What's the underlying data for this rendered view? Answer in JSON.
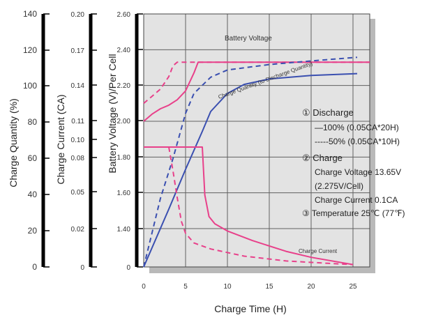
{
  "chart_data": {
    "type": "line",
    "title": "",
    "xlabel": "Charge Time (H)",
    "xlim": [
      0,
      27
    ],
    "xticks": [
      "0",
      "5",
      "10",
      "15",
      "20",
      "25"
    ],
    "grid": true,
    "axes": {
      "quantity": {
        "label": "Charge Quantity (%)",
        "ticks": [
          "0",
          "20",
          "40",
          "60",
          "80",
          "100",
          "120",
          "140"
        ],
        "ylim": [
          0,
          140
        ]
      },
      "current": {
        "label": "Charge Current (CA)",
        "ticks": [
          "0",
          "0.02",
          "0.05",
          "0.08",
          "0.10",
          "0.11",
          "0.14",
          "0.17",
          "0.20"
        ]
      },
      "voltage": {
        "label": "Battery Voltage (V)/Per Cell",
        "ticks": [
          "0",
          "1.40",
          "1.60",
          "1.80",
          "2.00",
          "2.20",
          "2.40",
          "2.60"
        ]
      }
    },
    "curve_labels": {
      "voltage": "Battery Voltage",
      "quantity": "Charge Quantity (to-Discharge Quantity)",
      "current": "Charge Current"
    },
    "series": [
      {
        "key": "voltage_100",
        "color": "#e8408a",
        "dash": false,
        "x": [
          0,
          1,
          2,
          3,
          4,
          5,
          6,
          6.5,
          27
        ],
        "y": [
          2.0,
          2.04,
          2.07,
          2.09,
          2.12,
          2.17,
          2.27,
          2.33,
          2.33
        ]
      },
      {
        "key": "voltage_50",
        "color": "#e8408a",
        "dash": true,
        "x": [
          0,
          1,
          2,
          3,
          3.5,
          4,
          27
        ],
        "y": [
          2.1,
          2.14,
          2.18,
          2.25,
          2.31,
          2.33,
          2.33
        ]
      },
      {
        "key": "quantity_100",
        "color": "#3a4fb0",
        "dash": false,
        "x": [
          0,
          3,
          5,
          7,
          8,
          10,
          12,
          15,
          20,
          25.5
        ],
        "y": [
          0,
          32,
          54,
          75,
          86,
          96,
          101,
          104,
          106,
          107
        ]
      },
      {
        "key": "quantity_50",
        "color": "#3a4fb0",
        "dash": true,
        "x": [
          0,
          2,
          3.5,
          5,
          6,
          8,
          10,
          15,
          20,
          25.5
        ],
        "y": [
          0,
          38,
          60,
          85,
          96,
          105,
          109,
          112,
          114,
          116
        ]
      },
      {
        "key": "current_100",
        "color": "#e8408a",
        "dash": false,
        "x": [
          0,
          7,
          7.3,
          7.8,
          8.5,
          10,
          13,
          17,
          20,
          25
        ],
        "y": [
          0.1,
          0.1,
          0.06,
          0.042,
          0.036,
          0.03,
          0.022,
          0.013,
          0.008,
          0.002
        ]
      },
      {
        "key": "current_50",
        "color": "#e8408a",
        "dash": true,
        "x": [
          0,
          3,
          3.5,
          4,
          4.5,
          5,
          6,
          8,
          12,
          17,
          22,
          25
        ],
        "y": [
          0.1,
          0.1,
          0.08,
          0.058,
          0.038,
          0.028,
          0.02,
          0.015,
          0.009,
          0.005,
          0.003,
          0.002
        ]
      }
    ]
  },
  "legend": {
    "discharge_title": "① Discharge",
    "d100": "—100% (0.05CA*20H)",
    "d50": "-----50% (0.05CA*10H)",
    "charge_title": "② Charge",
    "charge_voltage": "Charge Voltage 13.65V",
    "per_cell": "(2.275V/Cell)",
    "charge_current": "Charge Current 0.1CA",
    "temperature": "③ Temperature 25℃ (77℉)"
  },
  "colors": {
    "plot_bg": "#e3e3e3",
    "shadow": "#b9b9b9",
    "grid": "#606060",
    "pink": "#e8408a",
    "blue": "#3a4fb0"
  }
}
